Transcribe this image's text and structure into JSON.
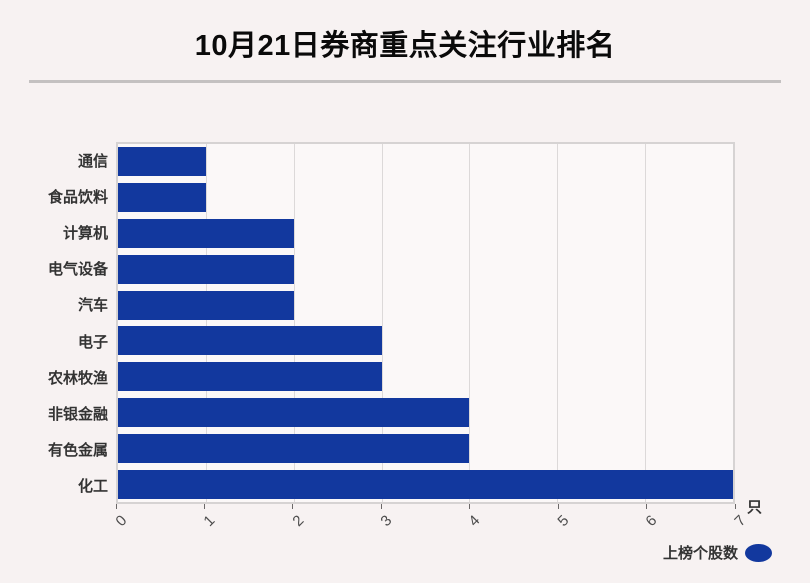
{
  "page": {
    "title": "10月21日券商重点关注行业排名",
    "unit_label": "只",
    "legend_label": "上榜个股数"
  },
  "colors": {
    "bar": "#12389e",
    "page_bg": "#f7f2f2",
    "plot_bg": "#fbf8f8",
    "plot_border": "#d6d3d3",
    "gridline": "#dcd9d9",
    "title_text": "#0a0a0a",
    "label_text": "#333333",
    "tick_text": "#4d4d4d",
    "divider": "#c4c1c1"
  },
  "chart_data": {
    "type": "bar",
    "orientation": "horizontal",
    "title": "10月21日券商重点关注行业排名",
    "categories": [
      "通信",
      "食品饮料",
      "计算机",
      "电气设备",
      "汽车",
      "电子",
      "农林牧渔",
      "非银金融",
      "有色金属",
      "化工"
    ],
    "values": [
      1,
      1,
      2,
      2,
      2,
      3,
      3,
      4,
      4,
      7
    ],
    "series_name": "上榜个股数",
    "xlabel": "只",
    "ylabel": "",
    "xlim": [
      0,
      7
    ],
    "xticks": [
      0,
      1,
      2,
      3,
      4,
      5,
      6,
      7
    ],
    "xtick_rotation_deg": 45,
    "grid": true,
    "legend_position": "bottom-right",
    "bars_sorted": "ascending-top-to-bottom"
  }
}
